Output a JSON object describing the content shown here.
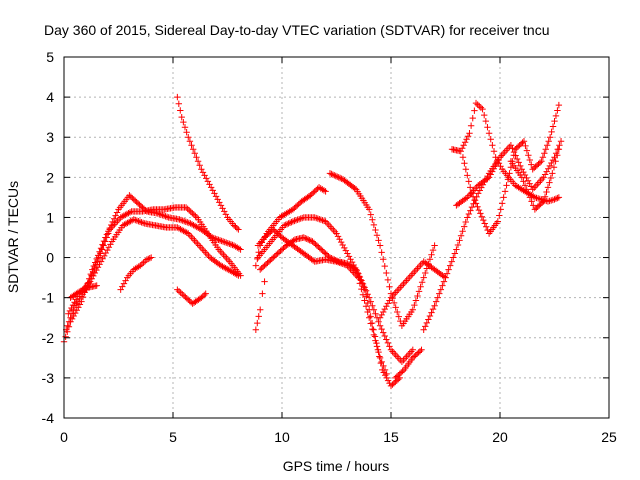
{
  "chart_data": {
    "type": "scatter",
    "title": "Day 360 of 2015, Sidereal Day-to-day VTEC variation (SDTVAR) for receiver tncu",
    "xlabel": "GPS time / hours",
    "ylabel": "SDTVAR / TECUs",
    "xlim": [
      0,
      25
    ],
    "ylim": [
      -4,
      5
    ],
    "x_ticks": [
      "0",
      "5",
      "10",
      "15",
      "20",
      "25"
    ],
    "y_ticks": [
      "-4",
      "-3",
      "-2",
      "-1",
      "0",
      "1",
      "2",
      "3",
      "4",
      "5"
    ],
    "x_tick_values": [
      0,
      5,
      10,
      15,
      20,
      25
    ],
    "y_tick_values": [
      -4,
      -3,
      -2,
      -1,
      0,
      1,
      2,
      3,
      4,
      5
    ],
    "grid": true,
    "legend": "none",
    "marker": "plus",
    "color": "#ff0000",
    "series": [
      {
        "x": [
          0.0,
          0.3,
          0.8,
          1.3,
          1.9,
          2.5,
          3.0,
          3.4,
          3.8,
          4.3,
          4.8,
          5.3,
          5.8,
          6.3,
          6.8,
          7.3,
          7.8,
          8.1
        ],
        "y": [
          -2.1,
          -1.6,
          -1.1,
          -0.3,
          0.5,
          1.2,
          1.55,
          1.35,
          1.15,
          1.1,
          1.0,
          0.95,
          0.85,
          0.7,
          0.5,
          0.4,
          0.3,
          0.2
        ]
      },
      {
        "x": [
          0.1,
          0.5,
          1.0,
          1.6,
          2.1,
          2.6,
          3.1,
          3.6,
          4.1,
          4.6,
          5.1,
          5.6,
          6.1,
          6.6,
          7.1,
          7.6,
          8.1
        ],
        "y": [
          -1.8,
          -1.2,
          -0.8,
          0.0,
          0.7,
          1.0,
          1.15,
          1.15,
          1.2,
          1.2,
          1.25,
          1.25,
          1.0,
          0.6,
          0.2,
          -0.1,
          -0.45
        ]
      },
      {
        "x": [
          0.2,
          0.7,
          1.2,
          1.7,
          2.2,
          2.7,
          3.2,
          3.7,
          4.2,
          4.7,
          5.2,
          5.7,
          6.2,
          6.7,
          7.2,
          7.7,
          8.0
        ],
        "y": [
          -1.4,
          -0.9,
          -0.6,
          -0.1,
          0.4,
          0.8,
          0.95,
          0.85,
          0.8,
          0.75,
          0.75,
          0.6,
          0.3,
          0.0,
          -0.2,
          -0.35,
          -0.45
        ]
      },
      {
        "x": [
          0.3,
          0.7,
          1.1,
          1.5
        ],
        "y": [
          -1.0,
          -0.85,
          -0.75,
          -0.7
        ]
      },
      {
        "x": [
          2.6,
          2.9,
          3.2,
          3.5,
          3.8,
          4.0
        ],
        "y": [
          -0.8,
          -0.5,
          -0.3,
          -0.2,
          -0.05,
          0.0
        ]
      },
      {
        "x": [
          5.2,
          5.4,
          5.7,
          6.0,
          6.3,
          6.6,
          6.9,
          7.2,
          7.5,
          7.8,
          8.0
        ],
        "y": [
          4.0,
          3.5,
          3.0,
          2.6,
          2.2,
          1.9,
          1.6,
          1.3,
          1.0,
          0.8,
          0.7
        ]
      },
      {
        "x": [
          5.2,
          5.5,
          5.9,
          6.3,
          6.5
        ],
        "y": [
          -0.8,
          -0.95,
          -1.15,
          -1.0,
          -0.9
        ]
      },
      {
        "x": [
          8.8,
          9.0,
          9.3,
          9.6,
          9.9,
          10.2,
          10.5,
          10.9,
          11.3,
          11.7,
          12.0
        ],
        "y": [
          -0.2,
          0.3,
          0.6,
          0.8,
          1.0,
          1.1,
          1.2,
          1.4,
          1.55,
          1.75,
          1.65
        ]
      },
      {
        "x": [
          8.9,
          9.2,
          9.5,
          9.8,
          10.1,
          10.5,
          11.0,
          11.5,
          12.0,
          12.5,
          13.0,
          13.5,
          14.0,
          14.5,
          15.0,
          15.5,
          16.0
        ],
        "y": [
          0.0,
          0.2,
          0.4,
          0.6,
          0.8,
          0.9,
          1.0,
          1.0,
          0.9,
          0.6,
          0.1,
          -0.4,
          -1.0,
          -1.7,
          -2.3,
          -2.6,
          -2.3
        ]
      },
      {
        "x": [
          8.9,
          9.2,
          9.6,
          10.0,
          10.5,
          11.0,
          11.5,
          12.0,
          12.5,
          13.0,
          13.5,
          14.0,
          14.5,
          14.8
        ],
        "y": [
          0.3,
          0.5,
          0.7,
          0.5,
          0.3,
          0.1,
          -0.1,
          -0.05,
          -0.1,
          -0.2,
          -0.5,
          -1.5,
          -2.5,
          -2.9
        ]
      },
      {
        "x": [
          9.0,
          9.4,
          9.8,
          10.2,
          10.6,
          11.0,
          11.4,
          11.8,
          12.2,
          12.6,
          13.0,
          13.4,
          13.8,
          14.2,
          14.6,
          15.0,
          15.4
        ],
        "y": [
          -0.3,
          -0.1,
          0.1,
          0.3,
          0.45,
          0.5,
          0.4,
          0.2,
          0.0,
          -0.1,
          -0.15,
          -0.3,
          -0.8,
          -1.8,
          -2.8,
          -3.2,
          -3.0
        ]
      },
      {
        "x": [
          12.2,
          12.8,
          13.4,
          14.0,
          14.5,
          15.0,
          15.5,
          16.0,
          16.5,
          17.0
        ],
        "y": [
          2.1,
          1.95,
          1.7,
          1.2,
          0.3,
          -0.9,
          -1.7,
          -1.3,
          -0.5,
          0.3
        ]
      },
      {
        "x": [
          8.8,
          9.0,
          9.1,
          9.2
        ],
        "y": [
          -1.8,
          -1.3,
          -0.9,
          -0.6
        ]
      },
      {
        "x": [
          14.5,
          15.0,
          15.5,
          16.0,
          16.5,
          17.0,
          17.5
        ],
        "y": [
          -1.5,
          -1.0,
          -0.7,
          -0.4,
          -0.1,
          -0.3,
          -0.5
        ]
      },
      {
        "x": [
          15.2,
          15.6,
          16.0,
          16.4
        ],
        "y": [
          -3.0,
          -2.8,
          -2.5,
          -2.3
        ]
      },
      {
        "x": [
          16.5,
          17.0,
          17.5,
          18.0,
          18.5,
          19.0,
          19.5,
          20.0
        ],
        "y": [
          -1.8,
          -1.2,
          -0.5,
          0.2,
          1.0,
          1.6,
          2.1,
          2.5
        ]
      },
      {
        "x": [
          17.8,
          18.2,
          18.6,
          18.9,
          19.2,
          19.5,
          19.8,
          20.1,
          20.4,
          20.7,
          21.0,
          21.3,
          21.6,
          21.9,
          22.2,
          22.5,
          22.7
        ],
        "y": [
          2.7,
          2.65,
          3.1,
          3.85,
          3.7,
          3.1,
          2.5,
          2.2,
          2.0,
          1.8,
          1.7,
          1.6,
          1.5,
          1.45,
          1.4,
          1.45,
          1.5
        ]
      },
      {
        "x": [
          18.0,
          18.5,
          19.0,
          19.5,
          20.0,
          20.5,
          21.0,
          21.5,
          22.0,
          22.5,
          22.8
        ],
        "y": [
          1.3,
          1.5,
          1.8,
          2.0,
          2.5,
          2.8,
          2.2,
          1.7,
          2.0,
          2.5,
          2.9
        ]
      },
      {
        "x": [
          18.3,
          18.7,
          19.1,
          19.5,
          19.9,
          20.3,
          20.7,
          21.1,
          21.5,
          21.9,
          22.3,
          22.7
        ],
        "y": [
          2.5,
          1.6,
          1.1,
          0.6,
          0.9,
          1.8,
          2.7,
          2.9,
          2.2,
          2.4,
          3.0,
          3.8
        ]
      },
      {
        "x": [
          20.5,
          21.0,
          21.3,
          21.6,
          22.0,
          22.4,
          22.7
        ],
        "y": [
          2.4,
          2.0,
          1.6,
          1.2,
          1.4,
          2.1,
          2.7
        ]
      }
    ]
  }
}
